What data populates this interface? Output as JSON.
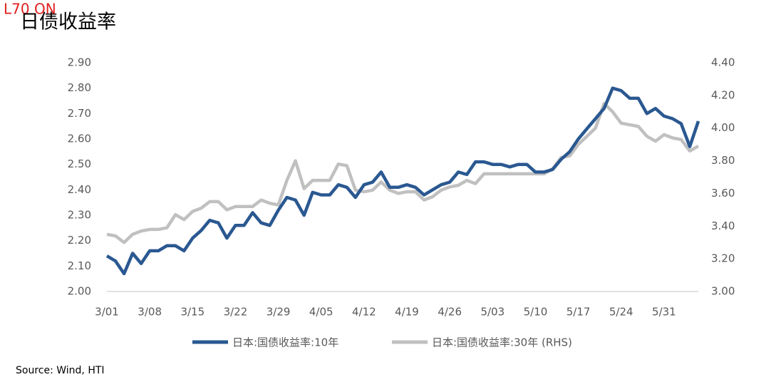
{
  "header": {
    "tag": "L70 ON"
  },
  "chart_data": {
    "type": "line",
    "title": "日债收益率",
    "source": "Source: Wind, HTI",
    "categories": [
      "3/01",
      null,
      null,
      null,
      null,
      "3/08",
      null,
      null,
      null,
      null,
      "3/15",
      null,
      null,
      null,
      null,
      "3/22",
      null,
      null,
      null,
      null,
      "3/29",
      null,
      null,
      null,
      null,
      "4/05",
      null,
      null,
      null,
      null,
      "4/12",
      null,
      null,
      null,
      null,
      "4/19",
      null,
      null,
      null,
      null,
      "4/26",
      null,
      null,
      null,
      null,
      "5/03",
      null,
      null,
      null,
      null,
      "5/10",
      null,
      null,
      null,
      null,
      "5/17",
      null,
      null,
      null,
      null,
      "5/24",
      null,
      null,
      null,
      null,
      "5/31",
      null,
      null,
      null,
      null
    ],
    "series": [
      {
        "name": "日本:国债收益率:10年",
        "color": "#2a5891",
        "axis": "y",
        "values": [
          2.14,
          2.12,
          2.07,
          2.15,
          2.11,
          2.16,
          2.16,
          2.18,
          2.18,
          2.16,
          2.21,
          2.24,
          2.28,
          2.27,
          2.21,
          2.26,
          2.26,
          2.31,
          2.27,
          2.26,
          2.32,
          2.37,
          2.36,
          2.3,
          2.39,
          2.38,
          2.38,
          2.42,
          2.41,
          2.37,
          2.42,
          2.43,
          2.47,
          2.41,
          2.41,
          2.42,
          2.41,
          2.38,
          2.4,
          2.42,
          2.43,
          2.47,
          2.46,
          2.51,
          2.51,
          2.5,
          2.5,
          2.49,
          2.5,
          2.5,
          2.47,
          2.47,
          2.48,
          2.52,
          2.55,
          2.6,
          2.64,
          2.68,
          2.72,
          2.8,
          2.79,
          2.76,
          2.76,
          2.7,
          2.72,
          2.69,
          2.68,
          2.66,
          2.57,
          2.67
        ]
      },
      {
        "name": "日本:国债收益率:30年 (RHS)",
        "color": "#c0c0c0",
        "axis": "y2",
        "values": [
          3.35,
          3.34,
          3.3,
          3.35,
          3.37,
          3.38,
          3.38,
          3.39,
          3.47,
          3.44,
          3.49,
          3.51,
          3.55,
          3.55,
          3.5,
          3.52,
          3.52,
          3.52,
          3.56,
          3.54,
          3.53,
          3.68,
          3.8,
          3.63,
          3.68,
          3.68,
          3.68,
          3.78,
          3.77,
          3.62,
          3.61,
          3.62,
          3.67,
          3.62,
          3.6,
          3.61,
          3.61,
          3.56,
          3.58,
          3.62,
          3.64,
          3.65,
          3.68,
          3.66,
          3.72,
          3.72,
          3.72,
          3.72,
          3.72,
          3.72,
          3.72,
          3.72,
          3.75,
          3.82,
          3.83,
          3.9,
          3.95,
          4.0,
          4.15,
          4.1,
          4.03,
          4.02,
          4.01,
          3.95,
          3.92,
          3.96,
          3.94,
          3.93,
          3.86,
          3.89
        ]
      }
    ],
    "ylim": [
      2.0,
      2.9
    ],
    "yticks": [
      {
        "value": 2.0,
        "label": "2.00"
      },
      {
        "value": 2.1,
        "label": "2.10"
      },
      {
        "value": 2.2,
        "label": "2.20"
      },
      {
        "value": 2.3,
        "label": "2.30"
      },
      {
        "value": 2.4,
        "label": "2.40"
      },
      {
        "value": 2.5,
        "label": "2.50"
      },
      {
        "value": 2.6,
        "label": "2.60"
      },
      {
        "value": 2.7,
        "label": "2.70"
      },
      {
        "value": 2.8,
        "label": "2.80"
      },
      {
        "value": 2.9,
        "label": "2.90"
      }
    ],
    "y2lim": [
      3.0,
      4.4
    ],
    "y2ticks": [
      {
        "value": 3.0,
        "label": "3.00"
      },
      {
        "value": 3.2,
        "label": "3.20"
      },
      {
        "value": 3.4,
        "label": "3.40"
      },
      {
        "value": 3.6,
        "label": "3.60"
      },
      {
        "value": 3.8,
        "label": "3.80"
      },
      {
        "value": 4.0,
        "label": "4.00"
      },
      {
        "value": 4.2,
        "label": "4.20"
      },
      {
        "value": 4.4,
        "label": "4.40"
      }
    ],
    "grid": false,
    "legend": "bottom"
  }
}
